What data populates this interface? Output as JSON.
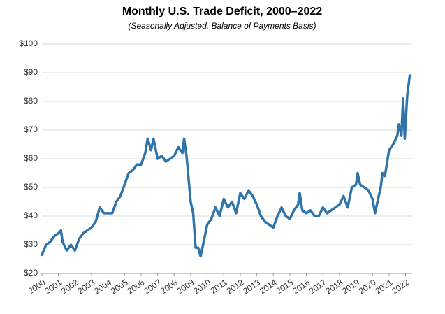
{
  "chart_data": {
    "type": "line",
    "title": "Monthly U.S. Trade Deficit, 2000–2022",
    "subtitle": "(Seasonally Adjusted, Balance of Payments Basis)",
    "x": [
      2000.0,
      2000.25,
      2000.5,
      2000.75,
      2001.0,
      2001.15,
      2001.25,
      2001.5,
      2001.75,
      2002.0,
      2002.25,
      2002.5,
      2002.75,
      2003.0,
      2003.25,
      2003.5,
      2003.75,
      2004.0,
      2004.25,
      2004.5,
      2004.75,
      2005.0,
      2005.25,
      2005.5,
      2005.75,
      2006.0,
      2006.25,
      2006.4,
      2006.6,
      2006.75,
      2007.0,
      2007.25,
      2007.5,
      2007.75,
      2008.0,
      2008.25,
      2008.5,
      2008.6,
      2008.75,
      2009.0,
      2009.15,
      2009.3,
      2009.45,
      2009.6,
      2009.75,
      2010.0,
      2010.25,
      2010.5,
      2010.75,
      2011.0,
      2011.25,
      2011.5,
      2011.75,
      2012.0,
      2012.25,
      2012.5,
      2012.75,
      2013.0,
      2013.25,
      2013.5,
      2013.75,
      2014.0,
      2014.25,
      2014.5,
      2014.75,
      2015.0,
      2015.25,
      2015.5,
      2015.6,
      2015.75,
      2016.0,
      2016.25,
      2016.5,
      2016.75,
      2017.0,
      2017.25,
      2017.5,
      2017.75,
      2018.0,
      2018.25,
      2018.5,
      2018.75,
      2019.0,
      2019.1,
      2019.25,
      2019.5,
      2019.75,
      2020.0,
      2020.15,
      2020.3,
      2020.5,
      2020.6,
      2020.75,
      2021.0,
      2021.25,
      2021.5,
      2021.6,
      2021.75,
      2021.85,
      2021.95,
      2022.1,
      2022.25,
      2022.3
    ],
    "values": [
      26.5,
      30,
      31,
      33,
      34,
      35,
      31,
      28,
      30,
      28,
      32,
      34,
      35,
      36,
      38,
      43,
      41,
      41,
      41,
      45,
      47,
      51,
      55,
      56,
      58,
      58,
      62,
      67,
      63,
      67,
      60,
      61,
      59,
      60,
      61,
      64,
      62,
      67,
      61,
      45,
      41,
      29,
      29,
      26,
      30,
      37,
      39,
      43,
      40,
      46,
      43,
      45,
      41,
      48,
      46,
      49,
      47,
      44,
      40,
      38,
      37,
      36,
      40,
      43,
      40,
      39,
      42,
      44,
      48,
      42,
      41,
      42,
      40,
      40,
      43,
      41,
      42,
      43,
      44,
      47,
      43,
      50,
      51,
      55,
      51,
      50,
      49,
      46,
      41,
      45,
      50,
      55,
      54,
      63,
      65,
      68,
      72,
      68,
      81,
      67,
      82,
      89,
      89
    ],
    "color": "#2e74ab",
    "xlim": [
      2000,
      2022.4
    ],
    "xticks": [
      2000,
      2001,
      2002,
      2003,
      2004,
      2005,
      2006,
      2007,
      2008,
      2009,
      2010,
      2011,
      2012,
      2013,
      2014,
      2015,
      2016,
      2017,
      2018,
      2019,
      2020,
      2021,
      2022
    ],
    "ylim": [
      20,
      100
    ],
    "yticks": [
      {
        "value": 20,
        "label": "$20"
      },
      {
        "value": 30,
        "label": "$30"
      },
      {
        "value": 40,
        "label": "$40"
      },
      {
        "value": 50,
        "label": "$50"
      },
      {
        "value": 60,
        "label": "$60"
      },
      {
        "value": 70,
        "label": "$70"
      },
      {
        "value": 80,
        "label": "$80"
      },
      {
        "value": 90,
        "label": "$90"
      },
      {
        "value": 100,
        "label": "$100"
      }
    ],
    "grid": true
  }
}
